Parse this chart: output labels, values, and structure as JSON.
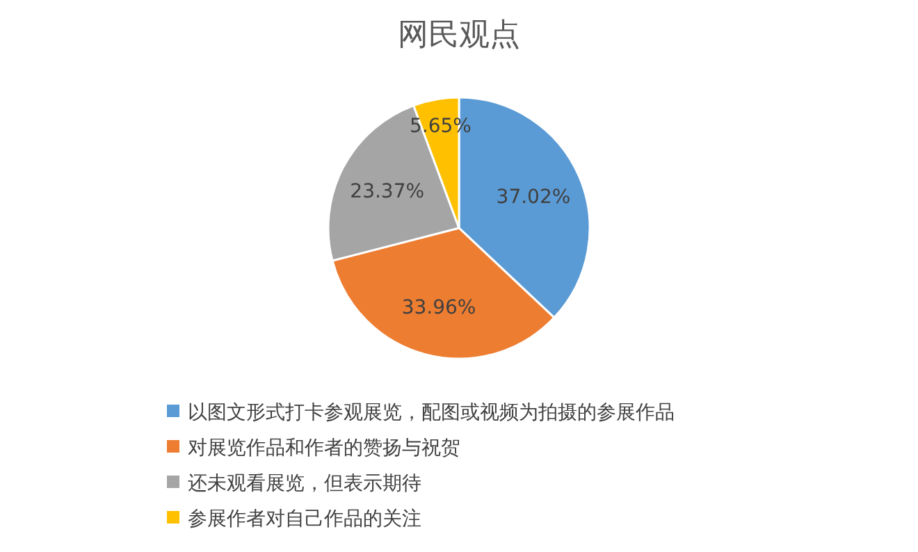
{
  "chart_data": {
    "type": "pie",
    "title": "网民观点",
    "categories": [
      "以图文形式打卡参观展览，配图或视频为拍摄的参展作品",
      "对展览作品和作者的赞扬与祝贺",
      "还未观看展览，但表示期待",
      "参展作者对自己作品的关注"
    ],
    "values": [
      37.02,
      33.96,
      23.37,
      5.65
    ],
    "value_labels": [
      "37.02%",
      "33.96%",
      "23.37%",
      "5.65%"
    ],
    "colors": [
      "#5b9bd5",
      "#ed7d31",
      "#a5a5a5",
      "#ffc000"
    ],
    "legend": "bottom"
  }
}
